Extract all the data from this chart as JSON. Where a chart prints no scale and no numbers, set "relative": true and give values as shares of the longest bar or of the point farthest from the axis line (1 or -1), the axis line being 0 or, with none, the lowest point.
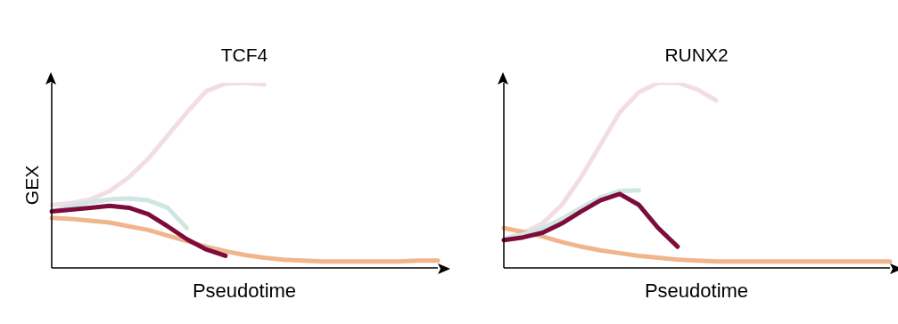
{
  "chart_data": [
    {
      "type": "line",
      "title": "TCF4",
      "xlabel": "Pseudotime",
      "ylabel": "GEX",
      "relative": true,
      "grid": false,
      "marker": "none",
      "line_style": "solid",
      "categories": [
        null,
        null,
        null,
        null,
        null,
        null,
        null,
        null,
        null,
        null,
        null,
        null,
        null,
        null,
        null,
        null,
        null,
        null,
        null,
        null,
        null
      ],
      "series": [
        {
          "color": "#f2dde6",
          "values": [
            0.34,
            0.35,
            0.37,
            0.415,
            0.49,
            0.59,
            0.715,
            0.84,
            0.955,
            0.995,
            1.0,
            0.99,
            null,
            null,
            null,
            null,
            null,
            null,
            null,
            null,
            null
          ]
        },
        {
          "color": "#efb68d",
          "values": [
            0.27,
            0.265,
            0.255,
            0.245,
            0.225,
            0.205,
            0.175,
            0.145,
            0.115,
            0.09,
            0.07,
            0.055,
            0.045,
            0.04,
            0.035,
            0.035,
            0.035,
            0.035,
            0.035,
            0.04,
            0.04
          ]
        },
        {
          "color": "#cfe6e3",
          "values": [
            0.305,
            0.335,
            0.355,
            0.37,
            0.375,
            0.365,
            0.325,
            0.215,
            null,
            null,
            null,
            null,
            null,
            null,
            null,
            null,
            null,
            null,
            null,
            null,
            null
          ]
        },
        {
          "color": "#7d0c3c",
          "values": [
            0.305,
            0.315,
            0.325,
            0.335,
            0.325,
            0.29,
            0.225,
            0.155,
            0.1,
            0.065,
            null,
            null,
            null,
            null,
            null,
            null,
            null,
            null,
            null,
            null,
            null
          ]
        }
      ]
    },
    {
      "type": "line",
      "title": "RUNX2",
      "xlabel": "Pseudotime",
      "relative": true,
      "grid": false,
      "marker": "none",
      "line_style": "solid",
      "categories": [
        null,
        null,
        null,
        null,
        null,
        null,
        null,
        null,
        null,
        null,
        null,
        null,
        null,
        null,
        null,
        null,
        null,
        null,
        null,
        null,
        null
      ],
      "series": [
        {
          "color": "#f2dde6",
          "values": [
            0.155,
            0.19,
            0.24,
            0.34,
            0.49,
            0.665,
            0.84,
            0.95,
            1.0,
            1.0,
            0.965,
            0.905,
            null,
            null,
            null,
            null,
            null,
            null,
            null,
            null,
            null
          ]
        },
        {
          "color": "#efb68d",
          "values": [
            0.215,
            0.195,
            0.17,
            0.14,
            0.115,
            0.095,
            0.08,
            0.065,
            0.055,
            0.045,
            0.04,
            0.035,
            0.035,
            0.035,
            0.035,
            0.035,
            0.035,
            0.035,
            0.035,
            0.035,
            0.035
          ]
        },
        {
          "color": "#cfe6e3",
          "values": [
            0.155,
            0.18,
            0.215,
            0.265,
            0.325,
            0.38,
            0.415,
            0.42,
            null,
            null,
            null,
            null,
            null,
            null,
            null,
            null,
            null,
            null,
            null,
            null,
            null
          ]
        },
        {
          "color": "#7d0c3c",
          "values": [
            0.15,
            0.165,
            0.19,
            0.24,
            0.305,
            0.365,
            0.4,
            0.34,
            0.215,
            0.115,
            null,
            null,
            null,
            null,
            null,
            null,
            null,
            null,
            null,
            null,
            null
          ]
        }
      ]
    }
  ]
}
